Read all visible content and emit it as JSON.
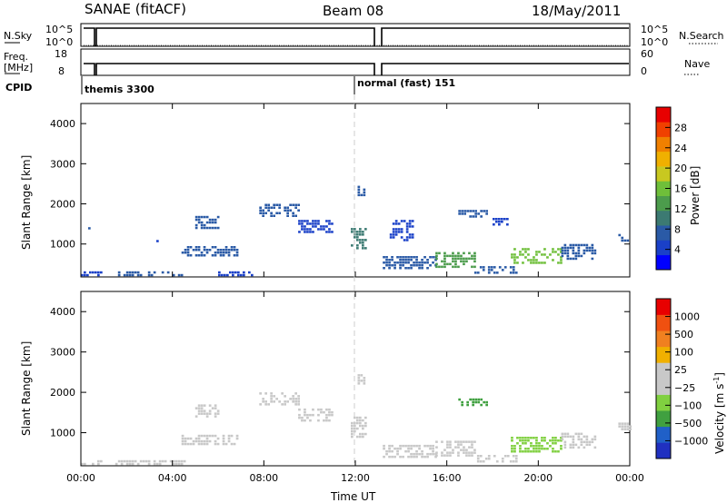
{
  "header": {
    "title": "SANAE (fitACF)",
    "beam": "Beam 08",
    "date": "18/May/2011"
  },
  "strips": {
    "nsky_label": "N.Sky",
    "nsearch_label": "N.Search",
    "nsky_ticks": [
      "10^5",
      "10^0"
    ],
    "nsearch_ticks": [
      "10^5",
      "10^0"
    ],
    "freq_label_1": "Freq.",
    "freq_label_2": "[MHz]",
    "freq_ticks": [
      "18",
      "8"
    ],
    "nave_label": "Nave",
    "nave_ticks": [
      "60",
      "0"
    ],
    "cpid_label": "CPID",
    "cpid_modes": [
      {
        "text": "themis 3300",
        "start_hour": 0
      },
      {
        "text": "normal (fast) 151",
        "start_hour": 12
      }
    ]
  },
  "axes": {
    "ylabel": "Slant Range [km]",
    "xlabel": "Time UT",
    "y_ticks": [
      "4000",
      "3000",
      "2000",
      "1000"
    ],
    "x_ticks": [
      "00:00",
      "04:00",
      "08:00",
      "12:00",
      "16:00",
      "20:00",
      "00:00"
    ]
  },
  "colorbars": {
    "power": {
      "label": "Power [dB]",
      "ticks": [
        "28",
        "24",
        "20",
        "16",
        "12",
        "8",
        "4"
      ],
      "colors": [
        "#0000ff",
        "#1a40c8",
        "#2a5aa6",
        "#3c7a72",
        "#4c9c4c",
        "#6fbf3a",
        "#c8c820",
        "#f0b000",
        "#f08000",
        "#f04000",
        "#e80000"
      ]
    },
    "velocity": {
      "label": "Velocity [m s",
      "label_sup": "-1",
      "label_end": "]",
      "ticks": [
        "1000",
        "500",
        "100",
        "25",
        "−25",
        "−100",
        "−500",
        "−1000"
      ],
      "colors": [
        "#2030c0",
        "#2060c8",
        "#40a040",
        "#80d040",
        "#c8c8c8",
        "#c8c8c8",
        "#f0b000",
        "#f08020",
        "#f05010",
        "#e80000"
      ]
    }
  },
  "chart_data": [
    {
      "type": "heatmap",
      "name": "power",
      "x_unit": "hour UT",
      "xlim": [
        0,
        24
      ],
      "ylim": [
        180,
        4500
      ],
      "colorbar_range": [
        0,
        30
      ],
      "regions": [
        {
          "x": [
            0.0,
            0.9
          ],
          "y": [
            200,
            320
          ],
          "v": 5
        },
        {
          "x": [
            0.2,
            0.4
          ],
          "y": [
            1330,
            1420
          ],
          "v": 6
        },
        {
          "x": [
            1.5,
            4.5
          ],
          "y": [
            240,
            320
          ],
          "v": 6
        },
        {
          "x": [
            3.3,
            3.5
          ],
          "y": [
            1000,
            1100
          ],
          "v": 4
        },
        {
          "x": [
            4.4,
            6.8
          ],
          "y": [
            700,
            950
          ],
          "v": 7
        },
        {
          "x": [
            5.0,
            6.0
          ],
          "y": [
            1400,
            1700
          ],
          "v": 8
        },
        {
          "x": [
            6.0,
            7.5
          ],
          "y": [
            250,
            320
          ],
          "v": 5
        },
        {
          "x": [
            7.8,
            9.5
          ],
          "y": [
            1700,
            2000
          ],
          "v": 7
        },
        {
          "x": [
            9.5,
            11.0
          ],
          "y": [
            1300,
            1600
          ],
          "v": 5
        },
        {
          "x": [
            11.8,
            12.4
          ],
          "y": [
            900,
            1400
          ],
          "v": 10
        },
        {
          "x": [
            12.1,
            12.4
          ],
          "y": [
            2200,
            2450
          ],
          "v": 6
        },
        {
          "x": [
            13.2,
            15.5
          ],
          "y": [
            420,
            700
          ],
          "v": 6
        },
        {
          "x": [
            13.5,
            14.5
          ],
          "y": [
            1100,
            1600
          ],
          "v": 5
        },
        {
          "x": [
            15.5,
            17.2
          ],
          "y": [
            450,
            800
          ],
          "v": 12
        },
        {
          "x": [
            16.5,
            17.8
          ],
          "y": [
            1700,
            1850
          ],
          "v": 6
        },
        {
          "x": [
            18.0,
            18.6
          ],
          "y": [
            1500,
            1650
          ],
          "v": 5
        },
        {
          "x": [
            17.2,
            19.0
          ],
          "y": [
            250,
            450
          ],
          "v": 7
        },
        {
          "x": [
            18.8,
            21.0
          ],
          "y": [
            500,
            900
          ],
          "v": 14
        },
        {
          "x": [
            21.0,
            22.5
          ],
          "y": [
            600,
            1000
          ],
          "v": 7
        },
        {
          "x": [
            23.5,
            24.0
          ],
          "y": [
            1100,
            1250
          ],
          "v": 6
        }
      ]
    },
    {
      "type": "heatmap",
      "name": "velocity",
      "x_unit": "hour UT",
      "xlim": [
        0,
        24
      ],
      "ylim": [
        180,
        4500
      ],
      "colorbar_range": [
        -1000,
        1000
      ],
      "regions": [
        {
          "x": [
            0.0,
            0.9
          ],
          "y": [
            200,
            320
          ],
          "v": -50
        },
        {
          "x": [
            1.5,
            4.5
          ],
          "y": [
            240,
            320
          ],
          "v": -60
        },
        {
          "x": [
            4.4,
            6.8
          ],
          "y": [
            700,
            950
          ],
          "v": 80
        },
        {
          "x": [
            5.0,
            6.0
          ],
          "y": [
            1400,
            1700
          ],
          "v": -200
        },
        {
          "x": [
            7.8,
            9.5
          ],
          "y": [
            1700,
            2000
          ],
          "v": -120
        },
        {
          "x": [
            9.5,
            11.0
          ],
          "y": [
            1300,
            1600
          ],
          "v": 0
        },
        {
          "x": [
            11.8,
            12.4
          ],
          "y": [
            900,
            1400
          ],
          "v": 0
        },
        {
          "x": [
            12.1,
            12.4
          ],
          "y": [
            2200,
            2450
          ],
          "v": 0
        },
        {
          "x": [
            13.2,
            15.5
          ],
          "y": [
            420,
            700
          ],
          "v": -80
        },
        {
          "x": [
            15.5,
            17.2
          ],
          "y": [
            450,
            800
          ],
          "v": -150
        },
        {
          "x": [
            16.5,
            17.8
          ],
          "y": [
            1700,
            1850
          ],
          "v": -600
        },
        {
          "x": [
            17.2,
            19.0
          ],
          "y": [
            250,
            450
          ],
          "v": -60
        },
        {
          "x": [
            18.8,
            21.0
          ],
          "y": [
            500,
            900
          ],
          "v": -250
        },
        {
          "x": [
            21.0,
            22.5
          ],
          "y": [
            600,
            1000
          ],
          "v": -100
        },
        {
          "x": [
            23.5,
            24.0
          ],
          "y": [
            1100,
            1250
          ],
          "v": -150
        }
      ]
    }
  ]
}
